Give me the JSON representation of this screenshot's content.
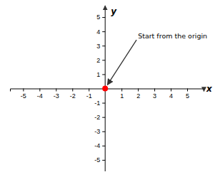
{
  "chart_data": {
    "type": "scatter",
    "xlabel": "x",
    "ylabel": "y",
    "x": [
      0
    ],
    "values": [
      0
    ],
    "color": "#ff0000",
    "xlim": [
      -5.8,
      6.0
    ],
    "ylim": [
      -5.8,
      5.8
    ],
    "xticks": [
      -5,
      -4,
      -3,
      -2,
      -1,
      1,
      2,
      3,
      4,
      5
    ],
    "yticks": [
      -5,
      -4,
      -3,
      -2,
      -1,
      1,
      2,
      3,
      4,
      5
    ],
    "annotations": [
      {
        "text": "Start from the origin",
        "x": 2.0,
        "y": 3.7
      }
    ]
  }
}
